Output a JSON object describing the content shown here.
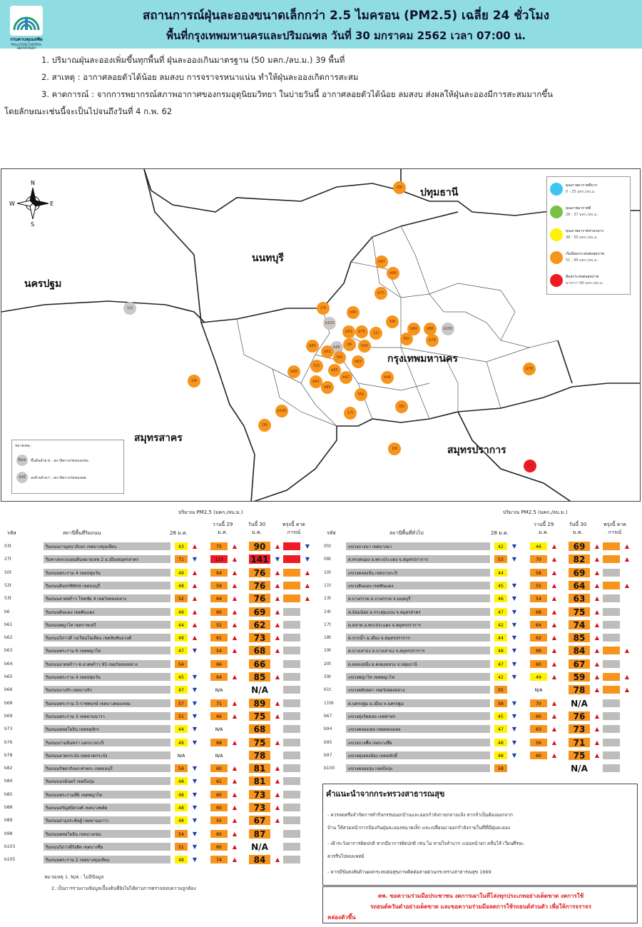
{
  "header": {
    "org": "กรมควบคุมมลพิษ",
    "org_en": "POLLUTION CONTROL DEPARTMENT",
    "title1": "สถานการณ์ฝุ่นละอองขนาดเล็กกว่า 2.5 ไมครอน (PM2.5) เฉลี่ย 24 ชั่วโมง",
    "title2": "พื้นที่กรุงเทพมหานครและปริมณฑล วันที่ 30 มกราคม 2562 เวลา 07:00 น."
  },
  "intro": [
    "1. ปริมาณฝุ่นละอองเพิ่มขึ้นทุกพื้นที่ ฝุ่นละอองเกินมาตรฐาน (50 มคก./ลบ.ม.) 39 พื้นที่",
    "2. สาเหตุ : อากาศลอยตัวได้น้อย ลมสงบ การจราจรหนาแน่น ทำให้ฝุ่นละอองเกิดการสะสม",
    "3. คาดการณ์ : จากการพยากรณ์สภาพอากาศของกรมอุตุนิยมวิทยา ในบ่ายวันนี้ อากาศลอยตัวได้น้อย ลมสงบ ส่งผลให้ฝุ่นละอองมีการสะสมมากขึ้น",
    "โดยลักษณะเช่นนี้จะเป็นไปจนถึงวันที่ 4 ก.พ. 62"
  ],
  "map": {
    "provinces": [
      "ปทุมธานี",
      "นนทบุรี",
      "นครปฐม",
      "กรุงเทพมหานคร",
      "สมุทรสาคร",
      "สมุทรปราการ"
    ],
    "compass": [
      "N",
      "E",
      "S",
      "W"
    ],
    "legend": [
      {
        "t1": "คุณภาพอากาศดีมาก",
        "t2": "0 - 25 มคก./ลบ.ม.",
        "color": "#3ec6f2"
      },
      {
        "t1": "คุณภาพอากาศดี",
        "t2": "26 - 37 มคก./ลบ.ม.",
        "color": "#7ac143"
      },
      {
        "t1": "คุณภาพอากาศปานกลาง",
        "t2": "38 - 50 มคก./ลบ.ม.",
        "color": "#fff200"
      },
      {
        "t1": "เริ่มมีผลกระทบต่อสุขภาพ",
        "t2": "51 - 90 มคก./ลบ.ม.",
        "color": "#f7941d"
      },
      {
        "t1": "มีผลกระทบต่อสุขภาพ",
        "t2": "มากกว่า 90 มคก./ลบ.ม.",
        "color": "#ed1c24"
      }
    ],
    "note_title": "หมายเหตุ :",
    "note1": "ขึ้นต้นด้วย b : สถานีตรวจวัดของกทม.",
    "note2": "ลงท้ายด้วย t : สถานีตรวจวัดของคพ.",
    "note_icon1": "bxx",
    "note_icon2": "xxt",
    "dots": [
      {
        "label": "29t",
        "c": "#f7941d"
      },
      {
        "label": "11t",
        "c": "#c8c8c8"
      },
      {
        "label": "b97",
        "c": "#f7941d"
      },
      {
        "label": "b98",
        "c": "#f7941d"
      },
      {
        "label": "b73",
        "c": "#f7941d"
      },
      {
        "label": "13t",
        "c": "#f7941d"
      },
      {
        "label": "b95",
        "c": "#f7941d"
      },
      {
        "label": "b103",
        "c": "#c8c8c8"
      },
      {
        "label": "b63",
        "c": "#f7941d"
      },
      {
        "label": "b75",
        "c": "#f7941d"
      },
      {
        "label": "11t",
        "c": "#f7941d"
      },
      {
        "label": "59t",
        "c": "#f7941d"
      },
      {
        "label": "b84",
        "c": "#f7941d"
      },
      {
        "label": "b86",
        "c": "#f7941d"
      },
      {
        "label": "b100",
        "c": "#c8c8c8"
      },
      {
        "label": "61t",
        "c": "#f7941d"
      },
      {
        "label": "b76",
        "c": "#f7941d"
      },
      {
        "label": "b85",
        "c": "#f7941d"
      },
      {
        "label": "b6",
        "c": "#f7941d"
      },
      {
        "label": "b66",
        "c": "#c8c8c8"
      },
      {
        "label": "b62",
        "c": "#f7941d"
      },
      {
        "label": "b50",
        "c": "#f7941d"
      },
      {
        "label": "50t",
        "c": "#f7941d"
      },
      {
        "label": "52t",
        "c": "#f7941d"
      },
      {
        "label": "b88",
        "c": "#f7941d"
      },
      {
        "label": "b65",
        "c": "#f7941d"
      },
      {
        "label": "b47",
        "c": "#f7941d"
      },
      {
        "label": "b82",
        "c": "#f7941d"
      },
      {
        "label": "b89",
        "c": "#f7941d"
      },
      {
        "label": "b69",
        "c": "#f7941d"
      },
      {
        "label": "b48",
        "c": "#f7941d"
      },
      {
        "label": "b78",
        "c": "#f7941d"
      },
      {
        "label": "14t",
        "c": "#f7941d"
      },
      {
        "label": "b105",
        "c": "#f7941d"
      },
      {
        "label": "17t",
        "c": "#f7941d"
      },
      {
        "label": "05t",
        "c": "#f7941d"
      },
      {
        "label": "05t",
        "c": "#f7941d"
      },
      {
        "label": "18t",
        "c": "#f7941d"
      },
      {
        "label": "19t",
        "c": "#f7941d"
      },
      {
        "label": "27t",
        "c": "#ed1c24"
      }
    ]
  },
  "table_header": {
    "pm_label": "ปริมาณ PM2.5 (มคก./ลบ.ม.)",
    "code": "รหัส",
    "station_left": "สถานีพื้นที่ริมถนน",
    "station_right": "สถานีพื้นที่ทั่วไป",
    "d28": "28 ม.ค.",
    "d29": "วานนี้ 29 ม.ค.",
    "d30": "วันนี้ 30 ม.ค.",
    "forecast": "พรุ่งนี้ คาดการณ์"
  },
  "left_rows": [
    {
      "code": "03t",
      "name": "ริมถนนกาญจนาภิเษก เขตบางขุนเทียน",
      "v28": "43",
      "a28": "▲",
      "v29": "75",
      "a29": "▲",
      "v30": "90",
      "a30": "▲",
      "f": "#ed1c24",
      "fa": "▼"
    },
    {
      "code": "27t",
      "name": "ริมทางหลวงแผ่นดินหมายเลข 2 อ.เมืองสมุทรสาคร",
      "v28": "71",
      "a28": "▼",
      "v29": "113",
      "a29": "▲",
      "v30": "141",
      "a30": "▼",
      "f": "#ed1c24",
      "fa": "▼"
    },
    {
      "code": "50t",
      "name": "ริมถนนพระราม 4 เขตปทุมวัน",
      "v28": "49",
      "a28": "▲",
      "v29": "64",
      "a29": "▲",
      "v30": "76",
      "a30": "▲",
      "f": "#f7941d",
      "fa": "▲"
    },
    {
      "code": "52t",
      "name": "ริมถนนอินทรพิทักษ์ เขตธนบุรี",
      "v28": "48",
      "a28": "▲",
      "v29": "59",
      "a29": "▲",
      "v30": "76",
      "a30": "▲",
      "f": "#f7941d",
      "fa": "▲"
    },
    {
      "code": "53t",
      "name": "ริมถนนลาดพร้าว โชคชัย 4 เขตวังทองหลาง",
      "v28": "52",
      "a28": "▲",
      "v29": "64",
      "a29": "▲",
      "v30": "76",
      "a30": "▲",
      "f": "#f7941d",
      "fa": "▲"
    },
    {
      "code": "b6",
      "name": "ริมถนนดินแดง เขตดินแดง",
      "v28": "49",
      "a28": "▲",
      "v29": "60",
      "a29": "▲",
      "v30": "69",
      "a30": "▲",
      "f": "",
      "fa": ""
    },
    {
      "code": "b61",
      "name": "ริมถนนพญาไท เขตราชเทวี",
      "v28": "44",
      "a28": "▲",
      "v29": "52",
      "a29": "▲",
      "v30": "62",
      "a30": "▲",
      "f": "",
      "fa": ""
    },
    {
      "code": "b62",
      "name": "ริมถนนวิภาวดี วงเวียนโอเดียน เขตสัมพันธวงศ์",
      "v28": "49",
      "a28": "▲",
      "v29": "61",
      "a29": "▲",
      "v30": "73",
      "a30": "▲",
      "f": "",
      "fa": ""
    },
    {
      "code": "b63",
      "name": "ริมถนนพระราม 6 เขตพญาไท",
      "v28": "47",
      "a28": "▼",
      "v29": "54",
      "a29": "▲",
      "v30": "68",
      "a30": "▲",
      "f": "",
      "fa": ""
    },
    {
      "code": "b64",
      "name": "ริมถนนลาดพร้าว ซ.ลาดพร้าว 95 เขตวังทองหลาง",
      "v28": "54",
      "a28": "",
      "v29": "66",
      "a29": "",
      "v30": "66",
      "a30": "",
      "f": "",
      "fa": ""
    },
    {
      "code": "b65",
      "name": "ริมถนนพระราม 4 เขตปทุมวัน",
      "v28": "45",
      "a28": "▼",
      "v29": "64",
      "a29": "▲",
      "v30": "85",
      "a30": "▲",
      "f": "",
      "fa": ""
    },
    {
      "code": "b66",
      "name": "ริมถนนบางรัก เขตบางรัก",
      "v28": "47",
      "a28": "▼",
      "v29": "N/A",
      "a29": "",
      "v30": "N/A",
      "a30": "",
      "f": "",
      "fa": ""
    },
    {
      "code": "b68",
      "name": "ริมถนนพระราม 3-ราชพฤกษ์ เขตบางคอแหลม",
      "v28": "57",
      "a28": "▼",
      "v29": "71",
      "a29": "▲",
      "v30": "89",
      "a30": "▲",
      "f": "",
      "fa": ""
    },
    {
      "code": "b69",
      "name": "ริมถนนพระราม 3 เขตยานนาวา",
      "v28": "51",
      "a28": "▼",
      "v29": "66",
      "a29": "▲",
      "v30": "75",
      "a30": "▲",
      "f": "",
      "fa": ""
    },
    {
      "code": "b73",
      "name": "ริมถนนพหลโยธิน เขตจตุจักร",
      "v28": "44",
      "a28": "▼",
      "v29": "N/A",
      "a29": "",
      "v30": "68",
      "a30": "",
      "f": "",
      "fa": ""
    },
    {
      "code": "b76",
      "name": "ริมถนนรามอินทรา แยกบางกะปิ",
      "v28": "49",
      "a28": "▼",
      "v29": "68",
      "a29": "▲",
      "v30": "75",
      "a30": "▲",
      "f": "",
      "fa": ""
    },
    {
      "code": "b78",
      "name": "ริมถนนลาดกระบัง เขตลาดกระบัง",
      "v28": "N/A",
      "a28": "",
      "v29": "N/A",
      "a29": "",
      "v30": "78",
      "a30": "",
      "f": "",
      "fa": ""
    },
    {
      "code": "b82",
      "name": "ริมถนนรัชดาภิเษก-ท่าพระ เขตธนบุรี",
      "v28": "54",
      "a28": "▼",
      "v29": "60",
      "a29": "▲",
      "v30": "81",
      "a30": "▲",
      "f": "",
      "fa": ""
    },
    {
      "code": "b84",
      "name": "ริมถนนนวมินทร์ เขตบึงกุ่ม",
      "v28": "48",
      "a28": "▼",
      "v29": "61",
      "a29": "▲",
      "v30": "81",
      "a30": "▲",
      "f": "",
      "fa": ""
    },
    {
      "code": "b85",
      "name": "ริมถนนพระรามที่6 เขตพญาไท",
      "v28": "48",
      "a28": "▼",
      "v29": "60",
      "a29": "▲",
      "v30": "73",
      "a30": "▲",
      "f": "",
      "fa": ""
    },
    {
      "code": "b88",
      "name": "ริมถนนจรัญสนิทวงศ์ เขตบางพลัด",
      "v28": "48",
      "a28": "▼",
      "v29": "60",
      "a29": "▲",
      "v30": "73",
      "a30": "▲",
      "f": "",
      "fa": ""
    },
    {
      "code": "b89",
      "name": "ริมถนนสาธุประดิษฐ์ เขตยานนาวา",
      "v28": "48",
      "a28": "▼",
      "v29": "55",
      "a29": "▲",
      "v30": "67",
      "a30": "▲",
      "f": "",
      "fa": ""
    },
    {
      "code": "b98",
      "name": "ริมถนนพหลโยธิน เขตบางเขน",
      "v28": "54",
      "a28": "▼",
      "v29": "60",
      "a29": "▲",
      "v30": "87",
      "a30": "",
      "f": "",
      "fa": ""
    },
    {
      "code": "b103",
      "name": "ริมถนนวิภาวดีรังสิต เขตบางซื่อ",
      "v28": "51",
      "a28": "▼",
      "v29": "60",
      "a29": "▲",
      "v30": "N/A",
      "a30": "",
      "f": "",
      "fa": ""
    },
    {
      "code": "b105",
      "name": "ริมถนนพระราม 2 เขตบางขุนเทียน",
      "v28": "48",
      "a28": "▼",
      "v29": "74",
      "a29": "▲",
      "v30": "84",
      "a30": "▲",
      "f": "",
      "fa": ""
    }
  ],
  "right_rows": [
    {
      "code": "05t",
      "name": "แขวงบางนา เขตบางนา",
      "v28": "42",
      "a28": "▼",
      "v29": "46",
      "a29": "▲",
      "v30": "69",
      "a30": "▲",
      "f": "#f7941d",
      "fa": "▲"
    },
    {
      "code": "08t",
      "name": "ต.ทรงคนอง อ.พระประแดง จ.สมุทรปราการ",
      "v28": "53",
      "a28": "▼",
      "v29": "70",
      "a29": "▲",
      "v30": "82",
      "a30": "▲",
      "f": "#f7941d",
      "fa": "▲"
    },
    {
      "code": "10t",
      "name": "แขวงคลองจั่น เขตบางกะปิ",
      "v28": "44",
      "a28": "",
      "v29": "58",
      "a29": "▲",
      "v30": "69",
      "a30": "▲",
      "f": "",
      "fa": ""
    },
    {
      "code": "11t",
      "name": "แขวงดินแดง เขตดินแดง",
      "v28": "45",
      "a28": "▼",
      "v29": "55",
      "a29": "▲",
      "v30": "64",
      "a30": "▲",
      "f": "#f7941d",
      "fa": "▲"
    },
    {
      "code": "13t",
      "name": "ต.บางกรวย อ.บางกรวย จ.นนทบุรี",
      "v28": "46",
      "a28": "▼",
      "v29": "54",
      "a29": "▲",
      "v30": "63",
      "a30": "▲",
      "f": "",
      "fa": ""
    },
    {
      "code": "14t",
      "name": "ต.อ้อมน้อย อ.กระทุ่มแบน จ.สมุทรสาคร",
      "v28": "47",
      "a28": "▼",
      "v29": "68",
      "a29": "▲",
      "v30": "75",
      "a30": "▲",
      "f": "",
      "fa": ""
    },
    {
      "code": "17t",
      "name": "ต.ตลาด อ.พระประแดง จ.สมุทรปราการ",
      "v28": "42",
      "a28": "▼",
      "v29": "64",
      "a29": "▲",
      "v30": "74",
      "a30": "▲",
      "f": "",
      "fa": ""
    },
    {
      "code": "18t",
      "name": "ต.ปากน้ำ อ.เมือง จ.สมุทรปราการ",
      "v28": "44",
      "a28": "▼",
      "v29": "62",
      "a29": "▲",
      "v30": "85",
      "a30": "▲",
      "f": "",
      "fa": ""
    },
    {
      "code": "19t",
      "name": "ต.บางเสาธง อ.บางเสาธง จ.สมุทรปราการ",
      "v28": "48",
      "a28": "▼",
      "v29": "69",
      "a29": "▲",
      "v30": "84",
      "a30": "▲",
      "f": "#f7941d",
      "fa": "▲"
    },
    {
      "code": "20t",
      "name": "ต.คลองหนึ่ง อ.คลองหลวง จ.ปทุมธานี",
      "v28": "47",
      "a28": "▼",
      "v29": "60",
      "a29": "▲",
      "v30": "67",
      "a30": "▲",
      "f": "",
      "fa": ""
    },
    {
      "code": "59t",
      "name": "แขวงพญาไท เขตพญาไท",
      "v28": "42",
      "a28": "▼",
      "v29": "49",
      "a29": "▲",
      "v30": "59",
      "a30": "▲",
      "f": "#f7941d",
      "fa": "▲"
    },
    {
      "code": "61t",
      "name": "แขวงพลับพลา เขตวังทองหลาง",
      "v28": "55",
      "a28": "",
      "v29": "N/A",
      "a29": "",
      "v30": "78",
      "a30": "▲",
      "f": "#f7941d",
      "fa": "▲"
    },
    {
      "code": "11t6",
      "name": "ต.นครปฐม อ.เมือง จ.นครปฐม",
      "v28": "58",
      "a28": "▼",
      "v29": "70",
      "a29": "▲",
      "v30": "N/A",
      "a30": "",
      "f": "",
      "fa": ""
    },
    {
      "code": "b67",
      "name": "แขวงทุ่งวัดดอน เขตสาทร",
      "v28": "45",
      "a28": "▼",
      "v29": "60",
      "a29": "▲",
      "v30": "76",
      "a30": "▲",
      "f": "",
      "fa": ""
    },
    {
      "code": "b94",
      "name": "แขวงคลองเตย เขตคลองเตย",
      "v28": "47",
      "a28": "▼",
      "v29": "63",
      "a29": "▲",
      "v30": "73",
      "a30": "▲",
      "f": "",
      "fa": ""
    },
    {
      "code": "b95",
      "name": "แขวงบางซื่อ เขตบางซื่อ",
      "v28": "48",
      "a28": "▼",
      "v29": "56",
      "a29": "▲",
      "v30": "71",
      "a30": "▲",
      "f": "",
      "fa": ""
    },
    {
      "code": "b97",
      "name": "แขวงทุ่งสองห้อง เขตหลักสี่",
      "v28": "48",
      "a28": "▼",
      "v29": "60",
      "a29": "▲",
      "v30": "75",
      "a30": "▲",
      "f": "",
      "fa": ""
    },
    {
      "code": "b100",
      "name": "แขวงคลองกุ่ม เขตบึงกุ่ม",
      "v28": "58",
      "a28": "",
      "v29": "",
      "a29": "",
      "v30": "N/A",
      "a30": "",
      "f": "",
      "fa": ""
    }
  ],
  "advice": {
    "title": "คำแนะนำจากกระทรวงสาธารณสุข",
    "lines": [
      "- ควรลดหรือจำกัดการทำกิจกรรมนอกบ้านและออกกำลังกายกลางแจ้ง หากจำเป็นต้องออกจาก",
      "บ้าน ให้สวมหน้ากากป้องกันฝุ่นละอองขนาดเล็ก และเปลี่ยนมาออกกำลังกายในที่ที่มีฝุ่นละออง",
      "- เฝ้าระวังอาการผิดปกติ หากมีอาการผิดปกติ เช่น ไอ หายใจลำบาก แน่นหน้าอก คลื่นไส้ เวียนศีรษะ",
      "ควรรีบไปพบแพทย์",
      "- หากมีข้อสงสัยด้านผลกระทบต่อสุขภาพติดต่อสายด่วนกระทรวงสาธารณสุข 1669"
    ]
  },
  "alert": {
    "lines": [
      "คพ. ขอความร่วมมือประชาชน งดการเผาในที่โล่งทุกประเภทอย่างเด็ดขาด งดการใช้",
      "รถยนต์ควันดำอย่างเด็ดขาด และขอความร่วมมือลดการใช้รถยนต์ส่วนตัว เพื่อให้การจราจร",
      "คล่องตัวขึ้น"
    ]
  },
  "footnotes": [
    "หมายเหตุ 1. N/A : ไม่มีข้อมูล",
    "2. เป็นการรายงานข้อมูลเบื้องต้นที่ยังไม่ได้ผ่านการตรวจสอบความถูกต้อง"
  ],
  "colors": {
    "header_bg": "#8fdde3",
    "yellow": "#fff200",
    "orange": "#f7941d",
    "red": "#ed1c24",
    "grey": "#bdbdbd",
    "arrow_up": "#d0141b",
    "arrow_down": "#1f3ba8"
  }
}
